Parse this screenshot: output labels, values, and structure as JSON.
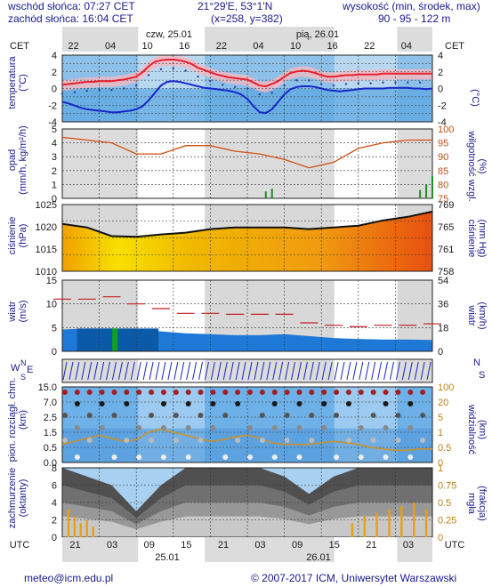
{
  "header": {
    "sunrise": "wschód słońca: 07:27 CET",
    "sunset": "zachód słońca: 16:04 CET",
    "coords": "21°29'E, 53°1'N",
    "grid": "(x=258, y=382)",
    "height_label": "wysokość (min, środek, max)",
    "height_values": "90 - 95 - 122 m",
    "tz_top": "CET",
    "day1": "czw, 25.01",
    "day2": "pią, 26.01",
    "top_hours": [
      "22",
      "04",
      "10",
      "16",
      "22",
      "04",
      "10",
      "16",
      "22",
      "04"
    ]
  },
  "panels": {
    "temp": {
      "left": "temperatura\n(°C)",
      "right": "(°C)",
      "ticks": [
        "4",
        "2",
        "0",
        "-2",
        "-4"
      ]
    },
    "precip": {
      "left": "opad\n(mm/h, kg/m²/h)",
      "right": "(%)\nwilgotność wzgl.",
      "ticks": [
        "5",
        "4",
        "3",
        "2",
        "1",
        "0"
      ],
      "rticks": [
        "100",
        "95",
        "90",
        "85",
        "80",
        "75"
      ]
    },
    "pressure": {
      "left": "ciśnienie\n(hPa)",
      "right": "(mm Hg)\nciśnienie",
      "ticks": [
        "1025",
        "1020",
        "1015",
        "1010"
      ],
      "rticks": [
        "769",
        "765",
        "761",
        "758"
      ]
    },
    "wind": {
      "left": "wiatr\n(m/s)",
      "right": "(km/h)\nwiatr",
      "ticks": [
        "15",
        "10",
        "5",
        "0"
      ],
      "rticks": [
        "54",
        "36",
        "18",
        "0"
      ]
    },
    "dir": {
      "left_w": "W",
      "left_s": "S",
      "left_n": "N",
      "left_e": "E",
      "right_n": "N",
      "right_s": "S"
    },
    "cloud": {
      "left": "pion. rozciągł. chm.\n(km)",
      "right": "(km)\nwidzialność",
      "ticks": [
        "15.0",
        "7.0",
        "2.5",
        "1.5",
        "0.5",
        "0.0"
      ],
      "rticks": [
        "100",
        "20",
        "5",
        "1",
        "0.5",
        "0"
      ]
    },
    "cover": {
      "left": "zachmurzenie\n(oktanty)",
      "right": "(frakcja)\nmgła",
      "ticks": [
        "8",
        "6",
        "4",
        "2",
        "0"
      ],
      "rticks": [
        "1",
        "0.75",
        "0.5",
        "0.25",
        "0"
      ]
    }
  },
  "bottom": {
    "tz": "UTC",
    "hours": [
      "21",
      "03",
      "09",
      "15",
      "21",
      "03",
      "09",
      "15",
      "21",
      "03"
    ],
    "date1": "25.01",
    "date2": "26.01"
  },
  "footer": {
    "email": "meteo@icm.edu.pl",
    "copyright": "© 2007-2017 ICM, Uniwersytet Warszawski"
  },
  "chart_data": [
    {
      "type": "line",
      "ylabel": "temperatura (°C)",
      "ylim": [
        -4.5,
        4.5
      ],
      "x": [
        0,
        1,
        2,
        3,
        4,
        5,
        6,
        7,
        8,
        9,
        10,
        11,
        12,
        13,
        14,
        15,
        16,
        17,
        18,
        19,
        20,
        21,
        22,
        23,
        24,
        25,
        26,
        27,
        28,
        29,
        30,
        31,
        32,
        33,
        34,
        35,
        36,
        37,
        38,
        39,
        40,
        41,
        42,
        43,
        44,
        45,
        46,
        47,
        48,
        49,
        50,
        51,
        52,
        53,
        54,
        55,
        56,
        57,
        58,
        59,
        60
      ],
      "series": [
        {
          "values": [
            0.5,
            0.6,
            0.7,
            0.8,
            0.9,
            0.9,
            1.0,
            1.0,
            1.0,
            1.1,
            1.2,
            1.4,
            1.6,
            2.2,
            3.0,
            3.6,
            3.8,
            3.9,
            3.9,
            3.8,
            3.6,
            3.3,
            2.8,
            2.5,
            2.2,
            1.9,
            1.7,
            1.5,
            1.4,
            1.3,
            1.2,
            0.8,
            0.4,
            0.3,
            0.6,
            1.0,
            1.6,
            2.1,
            2.3,
            2.4,
            2.3,
            2.1,
            1.8,
            1.6,
            1.6,
            1.7,
            1.8,
            1.8,
            1.9,
            1.9,
            1.9,
            1.9,
            2.0,
            2.0,
            2.0,
            2.0,
            2.0,
            2.0,
            2.0,
            2.0,
            2.0
          ]
        },
        {
          "values": [
            -1.8,
            -2.0,
            -2.3,
            -2.6,
            -2.8,
            -2.9,
            -3.0,
            -3.1,
            -3.2,
            -3.2,
            -3.1,
            -3.0,
            -2.8,
            -2.4,
            -1.6,
            -0.6,
            0.4,
            0.9,
            1.0,
            0.9,
            0.7,
            0.5,
            0.3,
            0.1,
            0.0,
            -0.1,
            -0.2,
            -0.3,
            -0.5,
            -0.8,
            -1.4,
            -2.4,
            -3.2,
            -3.3,
            -2.8,
            -1.8,
            -0.8,
            -0.1,
            0.2,
            0.3,
            0.3,
            0.2,
            0.0,
            -0.2,
            -0.3,
            -0.4,
            -0.3,
            -0.2,
            -0.1,
            0.0,
            0.0,
            0.0,
            0.0,
            0.1,
            0.1,
            0.1,
            0.1,
            0.0,
            0.0,
            -0.1,
            0.0
          ]
        }
      ]
    },
    {
      "type": "line",
      "ylabel": "wilgotność wzgl. (%)",
      "ylim": [
        75,
        100
      ],
      "x": [
        0,
        4,
        8,
        12,
        16,
        20,
        24,
        28,
        32,
        36,
        40,
        44,
        48,
        52,
        56,
        60
      ],
      "series": [
        {
          "values": [
            97,
            96,
            95,
            91,
            91,
            94,
            94,
            92,
            91,
            89,
            86,
            88,
            93,
            95,
            96,
            96
          ]
        }
      ]
    },
    {
      "type": "line",
      "ylabel": "ciśnienie (hPa)",
      "ylim": [
        1007,
        1026
      ],
      "x": [
        0,
        4,
        8,
        12,
        16,
        20,
        24,
        28,
        32,
        36,
        40,
        44,
        48,
        52,
        56,
        60
      ],
      "series": [
        {
          "values": [
            1020.5,
            1019.5,
            1017.0,
            1016.8,
            1017.5,
            1018.0,
            1019.0,
            1019.5,
            1019.5,
            1019.5,
            1019.0,
            1019.5,
            1020.0,
            1021.5,
            1022.5,
            1024.0
          ]
        }
      ]
    },
    {
      "type": "bar",
      "ylabel": "wiatr (m/s)",
      "ylim": [
        0,
        15
      ],
      "x": [
        0,
        4,
        8,
        12,
        16,
        20,
        24,
        28,
        32,
        36,
        40,
        44,
        48,
        52,
        56,
        60
      ],
      "series": [
        {
          "values": [
            4.6,
            4.8,
            4.8,
            4.6,
            4.2,
            3.8,
            3.6,
            3.4,
            3.4,
            3.6,
            3.2,
            2.8,
            2.6,
            2.5,
            2.5,
            2.4
          ]
        },
        {
          "values": [
            11,
            11,
            11.5,
            10,
            9,
            8,
            8,
            7.8,
            7.8,
            7.8,
            6,
            5.5,
            5.2,
            5.5,
            5.5,
            5.8
          ]
        }
      ]
    },
    {
      "type": "area",
      "ylabel": "zachmurzenie (oktanty)",
      "ylim": [
        0,
        8
      ],
      "x": [
        0,
        4,
        8,
        12,
        16,
        20,
        24,
        28,
        32,
        36,
        40,
        44,
        48,
        52,
        56,
        60
      ],
      "series": [
        {
          "values": [
            8,
            7,
            6,
            3,
            6,
            8,
            8,
            8,
            8,
            7,
            5,
            7,
            8,
            8,
            8,
            8
          ]
        }
      ]
    }
  ]
}
